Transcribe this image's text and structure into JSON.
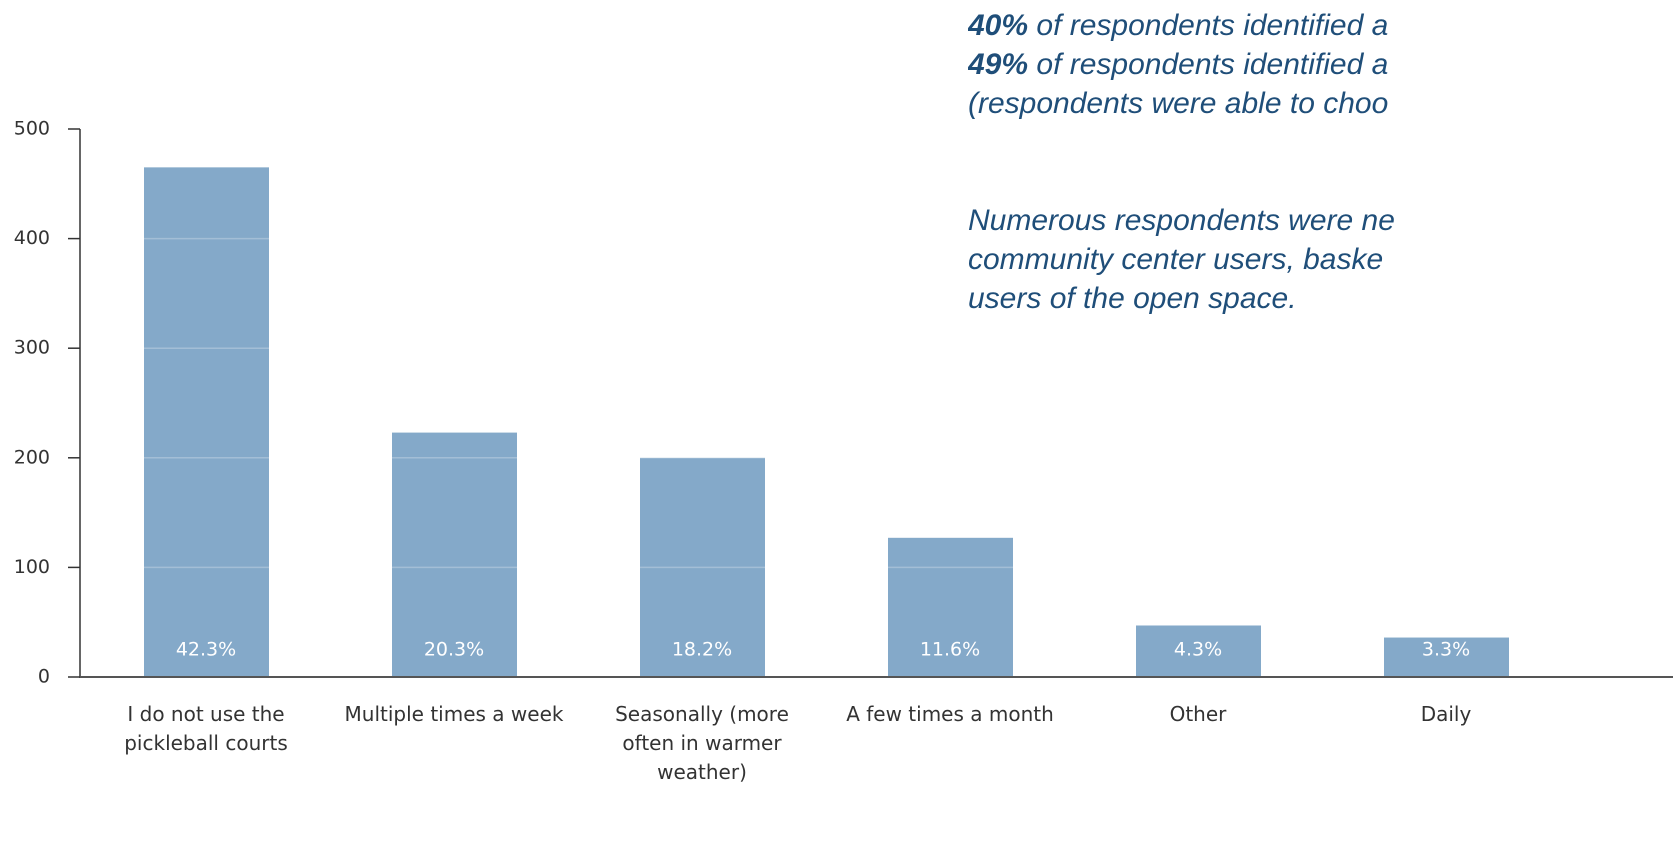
{
  "chart_data": {
    "type": "bar",
    "categories": [
      "I do not use the pickleball courts",
      "Multiple times a week",
      "Seasonally (more often in warmer weather)",
      "A few times a month",
      "Other",
      "Daily"
    ],
    "values": [
      465,
      223,
      200,
      127,
      47,
      36
    ],
    "value_labels": [
      "42.3%",
      "20.3%",
      "18.2%",
      "11.6%",
      "4.3%",
      "3.3%"
    ],
    "color": "#84a9c9",
    "ylim": [
      0,
      500
    ],
    "yticks": [
      0,
      100,
      200,
      300,
      400,
      500
    ],
    "grid": true
  },
  "notes": [
    {
      "bold": "40%",
      "text": " of respondents identified a"
    },
    {
      "bold": "49%",
      "text": " of respondents identified a"
    },
    {
      "text": "(respondents  were able to choo"
    }
  ],
  "notes2": [
    "Numerous respondents were ne",
    "community  center users, baske",
    "users of the open space."
  ]
}
